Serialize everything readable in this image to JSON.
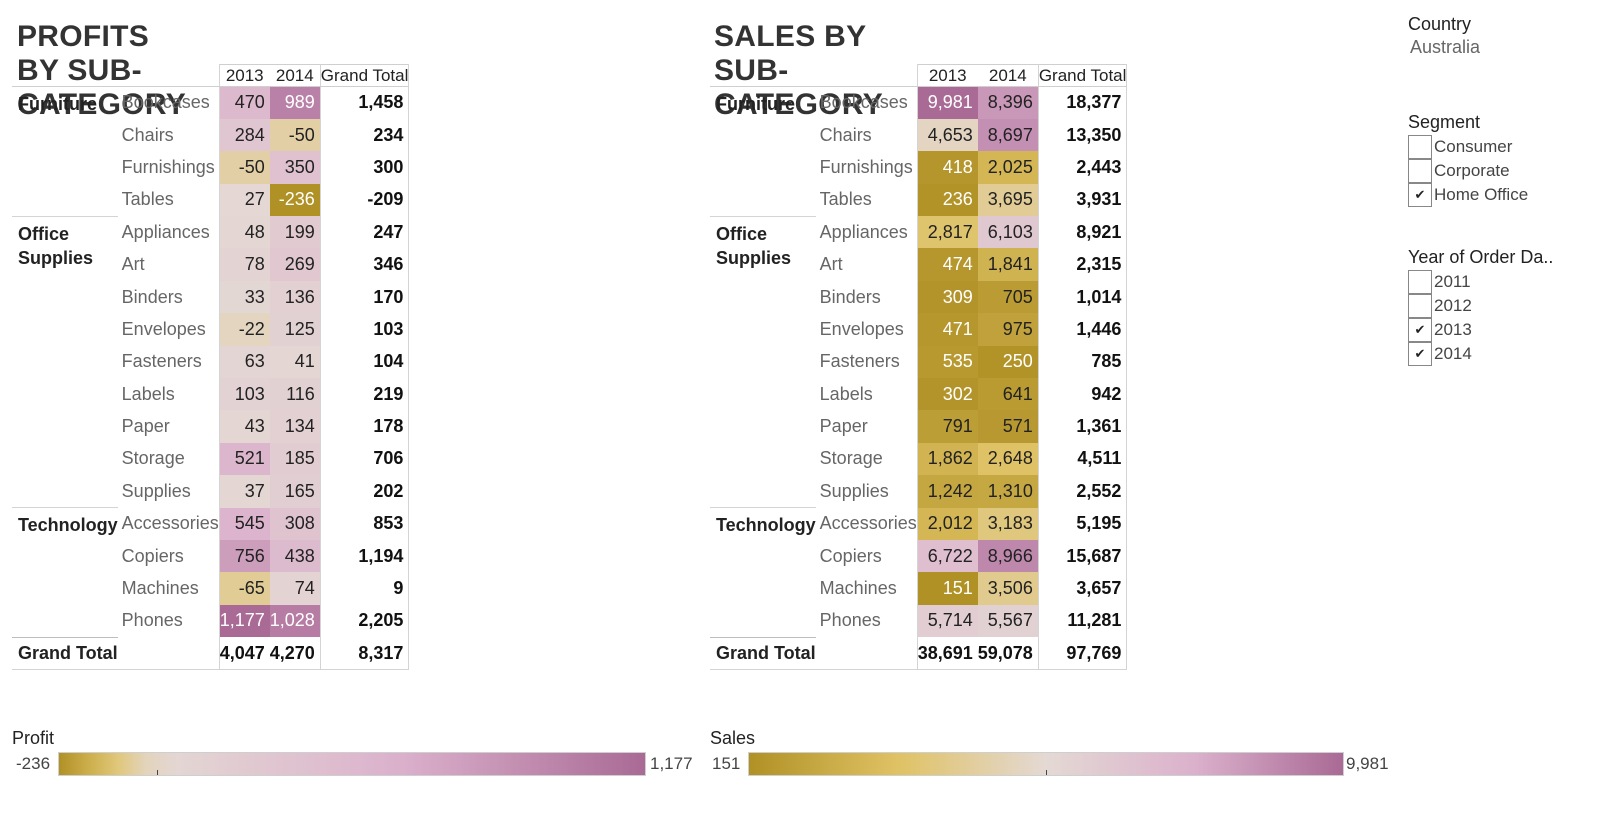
{
  "profit_table": {
    "title": "PROFITS BY SUB-CATEGORY",
    "years": [
      "2013",
      "2014"
    ],
    "grand_total_label": "Grand Total",
    "groups": [
      {
        "category": "Furniture",
        "rows": [
          {
            "sub": "Bookcases",
            "y2013": "470",
            "y2014": "989",
            "total": "1,458",
            "v2013": 470,
            "v2014": 989
          },
          {
            "sub": "Chairs",
            "y2013": "284",
            "y2014": "-50",
            "total": "234",
            "v2013": 284,
            "v2014": -50
          },
          {
            "sub": "Furnishings",
            "y2013": "-50",
            "y2014": "350",
            "total": "300",
            "v2013": -50,
            "v2014": 350
          },
          {
            "sub": "Tables",
            "y2013": "27",
            "y2014": "-236",
            "total": "-209",
            "v2013": 27,
            "v2014": -236
          }
        ]
      },
      {
        "category": "Office Supplies",
        "rows": [
          {
            "sub": "Appliances",
            "y2013": "48",
            "y2014": "199",
            "total": "247",
            "v2013": 48,
            "v2014": 199
          },
          {
            "sub": "Art",
            "y2013": "78",
            "y2014": "269",
            "total": "346",
            "v2013": 78,
            "v2014": 269
          },
          {
            "sub": "Binders",
            "y2013": "33",
            "y2014": "136",
            "total": "170",
            "v2013": 33,
            "v2014": 136
          },
          {
            "sub": "Envelopes",
            "y2013": "-22",
            "y2014": "125",
            "total": "103",
            "v2013": -22,
            "v2014": 125
          },
          {
            "sub": "Fasteners",
            "y2013": "63",
            "y2014": "41",
            "total": "104",
            "v2013": 63,
            "v2014": 41
          },
          {
            "sub": "Labels",
            "y2013": "103",
            "y2014": "116",
            "total": "219",
            "v2013": 103,
            "v2014": 116
          },
          {
            "sub": "Paper",
            "y2013": "43",
            "y2014": "134",
            "total": "178",
            "v2013": 43,
            "v2014": 134
          },
          {
            "sub": "Storage",
            "y2013": "521",
            "y2014": "185",
            "total": "706",
            "v2013": 521,
            "v2014": 185
          },
          {
            "sub": "Supplies",
            "y2013": "37",
            "y2014": "165",
            "total": "202",
            "v2013": 37,
            "v2014": 165
          }
        ]
      },
      {
        "category": "Technology",
        "rows": [
          {
            "sub": "Accessories",
            "y2013": "545",
            "y2014": "308",
            "total": "853",
            "v2013": 545,
            "v2014": 308
          },
          {
            "sub": "Copiers",
            "y2013": "756",
            "y2014": "438",
            "total": "1,194",
            "v2013": 756,
            "v2014": 438
          },
          {
            "sub": "Machines",
            "y2013": "-65",
            "y2014": "74",
            "total": "9",
            "v2013": -65,
            "v2014": 74
          },
          {
            "sub": "Phones",
            "y2013": "1,177",
            "y2014": "1,028",
            "total": "2,205",
            "v2013": 1177,
            "v2014": 1028
          }
        ]
      }
    ],
    "totals": {
      "y2013": "4,047",
      "y2014": "4,270",
      "grand": "8,317"
    }
  },
  "sales_table": {
    "title": "SALES BY SUB-CATEGORY",
    "years": [
      "2013",
      "2014"
    ],
    "grand_total_label": "Grand Total",
    "groups": [
      {
        "category": "Furniture",
        "rows": [
          {
            "sub": "Bookcases",
            "y2013": "9,981",
            "y2014": "8,396",
            "total": "18,377",
            "v2013": 9981,
            "v2014": 8396
          },
          {
            "sub": "Chairs",
            "y2013": "4,653",
            "y2014": "8,697",
            "total": "13,350",
            "v2013": 4653,
            "v2014": 8697
          },
          {
            "sub": "Furnishings",
            "y2013": "418",
            "y2014": "2,025",
            "total": "2,443",
            "v2013": 418,
            "v2014": 2025
          },
          {
            "sub": "Tables",
            "y2013": "236",
            "y2014": "3,695",
            "total": "3,931",
            "v2013": 236,
            "v2014": 3695
          }
        ]
      },
      {
        "category": "Office Supplies",
        "rows": [
          {
            "sub": "Appliances",
            "y2013": "2,817",
            "y2014": "6,103",
            "total": "8,921",
            "v2013": 2817,
            "v2014": 6103
          },
          {
            "sub": "Art",
            "y2013": "474",
            "y2014": "1,841",
            "total": "2,315",
            "v2013": 474,
            "v2014": 1841
          },
          {
            "sub": "Binders",
            "y2013": "309",
            "y2014": "705",
            "total": "1,014",
            "v2013": 309,
            "v2014": 705
          },
          {
            "sub": "Envelopes",
            "y2013": "471",
            "y2014": "975",
            "total": "1,446",
            "v2013": 471,
            "v2014": 975
          },
          {
            "sub": "Fasteners",
            "y2013": "535",
            "y2014": "250",
            "total": "785",
            "v2013": 535,
            "v2014": 250
          },
          {
            "sub": "Labels",
            "y2013": "302",
            "y2014": "641",
            "total": "942",
            "v2013": 302,
            "v2014": 641
          },
          {
            "sub": "Paper",
            "y2013": "791",
            "y2014": "571",
            "total": "1,361",
            "v2013": 791,
            "v2014": 571
          },
          {
            "sub": "Storage",
            "y2013": "1,862",
            "y2014": "2,648",
            "total": "4,511",
            "v2013": 1862,
            "v2014": 2648
          },
          {
            "sub": "Supplies",
            "y2013": "1,242",
            "y2014": "1,310",
            "total": "2,552",
            "v2013": 1242,
            "v2014": 1310
          }
        ]
      },
      {
        "category": "Technology",
        "rows": [
          {
            "sub": "Accessories",
            "y2013": "2,012",
            "y2014": "3,183",
            "total": "5,195",
            "v2013": 2012,
            "v2014": 3183
          },
          {
            "sub": "Copiers",
            "y2013": "6,722",
            "y2014": "8,966",
            "total": "15,687",
            "v2013": 6722,
            "v2014": 8966
          },
          {
            "sub": "Machines",
            "y2013": "151",
            "y2014": "3,506",
            "total": "3,657",
            "v2013": 151,
            "v2014": 3506
          },
          {
            "sub": "Phones",
            "y2013": "5,714",
            "y2014": "5,567",
            "total": "11,281",
            "v2013": 5714,
            "v2014": 5567
          }
        ]
      }
    ],
    "totals": {
      "y2013": "38,691",
      "y2014": "59,078",
      "grand": "97,769"
    }
  },
  "legends": {
    "profit": {
      "title": "Profit",
      "min_label": "-236",
      "max_label": "1,177",
      "min": -236,
      "max": 1177
    },
    "sales": {
      "title": "Sales",
      "min_label": "151",
      "max_label": "9,981",
      "min": 151,
      "max": 9981
    }
  },
  "filters": {
    "country": {
      "title": "Country",
      "value": "Australia"
    },
    "segment": {
      "title": "Segment",
      "options": [
        {
          "label": "Consumer",
          "checked": false
        },
        {
          "label": "Corporate",
          "checked": false
        },
        {
          "label": "Home Office",
          "checked": true
        }
      ]
    },
    "year": {
      "title": "Year of Order Da..",
      "options": [
        {
          "label": "2011",
          "checked": false
        },
        {
          "label": "2012",
          "checked": false
        },
        {
          "label": "2013",
          "checked": true
        },
        {
          "label": "2014",
          "checked": true
        }
      ]
    }
  },
  "colors": {
    "gold_dark": "#b09126",
    "gold_light": "#dfc264",
    "neutral": "#e4d9d4",
    "pink_light": "#dbb1cc",
    "mauve_dark": "#a96a95"
  },
  "check_glyph": "✔"
}
